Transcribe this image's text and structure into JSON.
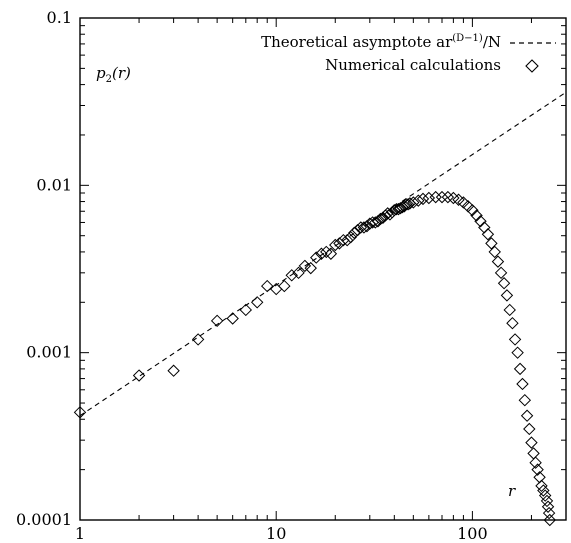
{
  "chart_data": {
    "type": "scatter",
    "xscale": "log",
    "yscale": "log",
    "xlim": [
      1,
      300
    ],
    "ylim": [
      0.0001,
      0.1
    ],
    "x_ticks": [
      1,
      10,
      100
    ],
    "x_tick_labels": [
      "1",
      "10",
      "100"
    ],
    "y_ticks": [
      0.0001,
      0.001,
      0.01,
      0.1
    ],
    "y_tick_labels": [
      "0.0001",
      "0.001",
      "0.01",
      "0.1"
    ],
    "ylabel": "p2(r)",
    "ylabel_parts": {
      "main": "p",
      "sub": "2",
      "arg": "(r)"
    },
    "xlabel": "r",
    "grid": false,
    "legend_position": "top-right",
    "legend": [
      {
        "label": "Theoretical asymptote ar(D−1)/N",
        "label_base": "Theoretical asymptote ar",
        "label_sup": "(D−1)",
        "label_tail": "/N",
        "style": "dashed-line"
      },
      {
        "label": "Numerical calculations",
        "style": "diamond-marker"
      }
    ],
    "series": [
      {
        "type": "line",
        "style": "dashed",
        "x": [
          1,
          300
        ],
        "y": [
          0.00042,
          0.036
        ]
      },
      {
        "type": "scatter",
        "marker": "diamond",
        "x": [
          1,
          2,
          3,
          4,
          5,
          6,
          7,
          8,
          9,
          10,
          11,
          12,
          13,
          14,
          15,
          16,
          17,
          18,
          19,
          20,
          21,
          22,
          23,
          24,
          25,
          26,
          27,
          28,
          29,
          30,
          31,
          32,
          33,
          34,
          35,
          36,
          37,
          38,
          39,
          40,
          41,
          42,
          43,
          44,
          45,
          46,
          47,
          48,
          50,
          53,
          56,
          60,
          65,
          70,
          75,
          80,
          85,
          90,
          95,
          100,
          105,
          110,
          115,
          120,
          125,
          130,
          135,
          140,
          145,
          150,
          155,
          160,
          165,
          170,
          175,
          180,
          185,
          190,
          195,
          200,
          205,
          210,
          215,
          220,
          225,
          230,
          235,
          240,
          243,
          246,
          248
        ],
        "y": [
          0.00044,
          0.00073,
          0.00078,
          0.0012,
          0.00155,
          0.0016,
          0.0018,
          0.002,
          0.0025,
          0.0024,
          0.0025,
          0.0029,
          0.003,
          0.0033,
          0.0032,
          0.0037,
          0.0039,
          0.004,
          0.0039,
          0.0044,
          0.0045,
          0.0047,
          0.0047,
          0.0049,
          0.0052,
          0.0054,
          0.0056,
          0.0056,
          0.0057,
          0.0059,
          0.006,
          0.006,
          0.0061,
          0.0063,
          0.0064,
          0.0066,
          0.0068,
          0.0067,
          0.0069,
          0.0071,
          0.0072,
          0.0072,
          0.0073,
          0.0074,
          0.0075,
          0.0077,
          0.0077,
          0.0078,
          0.0079,
          0.0081,
          0.0083,
          0.0084,
          0.0085,
          0.0085,
          0.0085,
          0.0084,
          0.0082,
          0.0079,
          0.0075,
          0.0071,
          0.0066,
          0.0061,
          0.0056,
          0.0051,
          0.0045,
          0.004,
          0.0035,
          0.003,
          0.0026,
          0.0022,
          0.0018,
          0.0015,
          0.0012,
          0.001,
          0.0008,
          0.00065,
          0.00052,
          0.00042,
          0.00035,
          0.00029,
          0.00025,
          0.00022,
          0.0002,
          0.00018,
          0.00016,
          0.00015,
          0.00014,
          0.00013,
          0.00012,
          0.00011,
          0.0001
        ]
      }
    ]
  }
}
